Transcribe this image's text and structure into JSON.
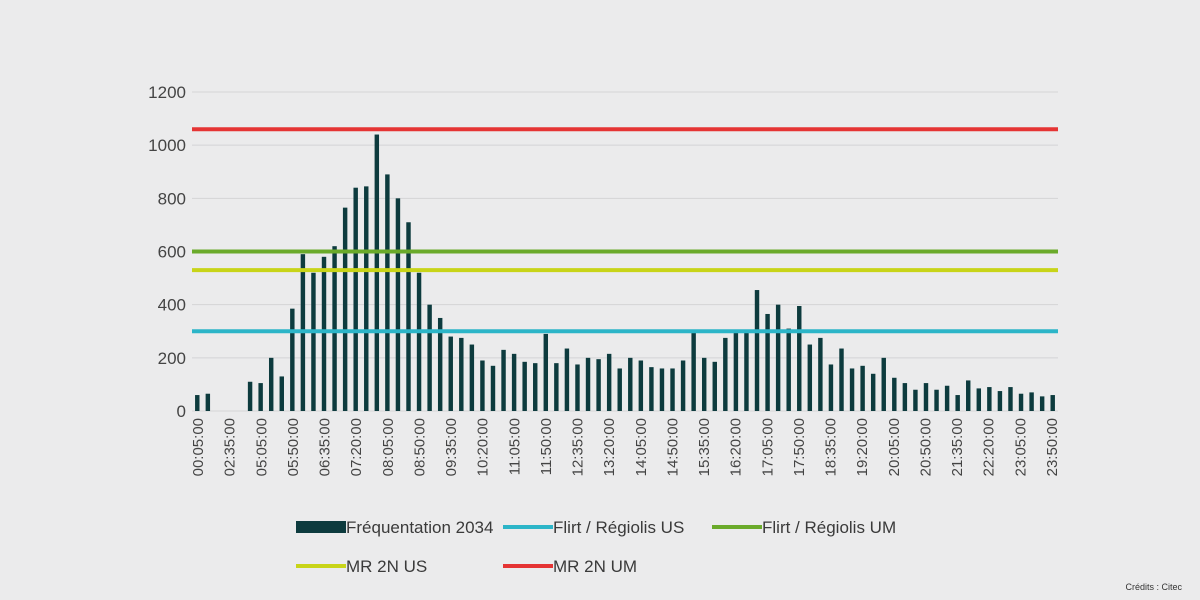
{
  "chart_data": {
    "type": "bar",
    "title": "",
    "xlabel": "",
    "ylabel": "",
    "ylim": [
      0,
      1200
    ],
    "yticks": [
      0,
      200,
      400,
      600,
      800,
      1000,
      1200
    ],
    "grid": true,
    "x_tick_labels": [
      "00:05:00",
      "02:35:00",
      "05:05:00",
      "05:50:00",
      "06:35:00",
      "07:20:00",
      "08:05:00",
      "08:50:00",
      "09:35:00",
      "10:20:00",
      "11:05:00",
      "11:50:00",
      "12:35:00",
      "13:20:00",
      "14:05:00",
      "14:50:00",
      "15:35:00",
      "16:20:00",
      "17:05:00",
      "17:50:00",
      "18:35:00",
      "19:20:00",
      "20:05:00",
      "20:50:00",
      "21:35:00",
      "22:20:00",
      "23:05:00",
      "23:50:00"
    ],
    "series": [
      {
        "name": "Fréquentation 2034",
        "kind": "bar",
        "color": "#0d3b3e",
        "values": [
          60,
          65,
          0,
          0,
          0,
          110,
          105,
          200,
          130,
          385,
          590,
          520,
          580,
          620,
          765,
          840,
          845,
          1040,
          890,
          800,
          710,
          520,
          400,
          350,
          280,
          275,
          250,
          190,
          170,
          230,
          215,
          185,
          180,
          290,
          180,
          235,
          175,
          200,
          195,
          215,
          160,
          200,
          190,
          165,
          160,
          160,
          190,
          300,
          200,
          185,
          275,
          300,
          300,
          455,
          365,
          400,
          310,
          395,
          250,
          275,
          175,
          235,
          160,
          170,
          140,
          200,
          125,
          105,
          80,
          105,
          80,
          95,
          60,
          115,
          85,
          90,
          75,
          90,
          65,
          70,
          55,
          60
        ]
      },
      {
        "name": "Flirt / Régiolis US",
        "kind": "line",
        "color": "#2cb5c8",
        "value": 300
      },
      {
        "name": "Flirt / Régiolis UM",
        "kind": "line",
        "color": "#6aaa2a",
        "value": 600
      },
      {
        "name": "MR 2N US",
        "kind": "line",
        "color": "#c8d418",
        "value": 530
      },
      {
        "name": "MR 2N UM",
        "kind": "line",
        "color": "#e53434",
        "value": 1060
      }
    ],
    "legend": "bottom"
  },
  "credit": "Crédits : Citec"
}
